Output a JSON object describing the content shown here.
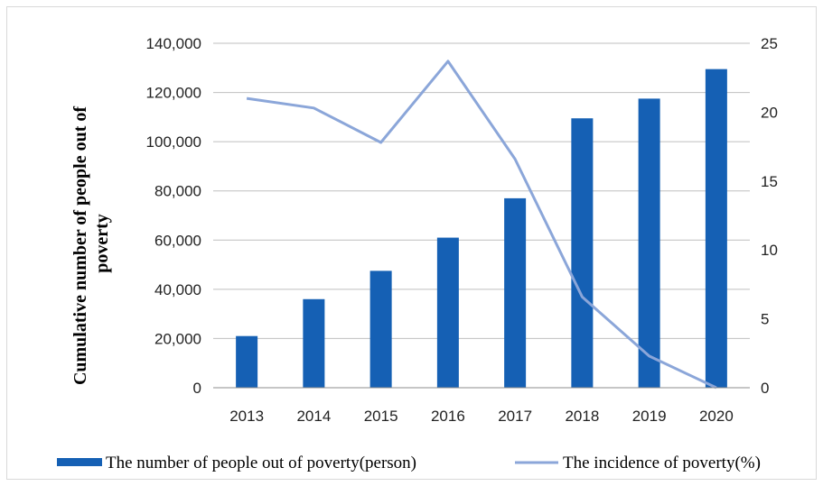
{
  "chart_data": {
    "type": "bar",
    "categories": [
      "2013",
      "2014",
      "2015",
      "2016",
      "2017",
      "2018",
      "2019",
      "2020"
    ],
    "series": [
      {
        "name": "The number of people out of poverty(person)",
        "type": "bar",
        "axis": "left",
        "color": "#1560b4",
        "values": [
          21000,
          36000,
          47500,
          61000,
          77000,
          109500,
          117500,
          129500
        ]
      },
      {
        "name": "The incidence of poverty(%)",
        "type": "line",
        "axis": "right",
        "color": "#8ba6d9",
        "values": [
          21.0,
          20.3,
          17.8,
          23.7,
          16.6,
          6.6,
          2.3,
          0.0
        ]
      }
    ],
    "ylabel": "Cumulative number of people out of poverty",
    "y_left": {
      "range": [
        0,
        140000
      ],
      "ticks": [
        0,
        20000,
        40000,
        60000,
        80000,
        100000,
        120000,
        140000
      ],
      "tick_labels": [
        "0",
        "20,000",
        "40,000",
        "60,000",
        "80,000",
        "100,000",
        "120,000",
        "140,000"
      ]
    },
    "y_right": {
      "range": [
        0,
        25
      ],
      "ticks": [
        0,
        5,
        10,
        15,
        20,
        25
      ],
      "tick_labels": [
        "0",
        "5",
        "10",
        "15",
        "20",
        "25"
      ]
    },
    "grid": true,
    "legend": "bottom"
  }
}
